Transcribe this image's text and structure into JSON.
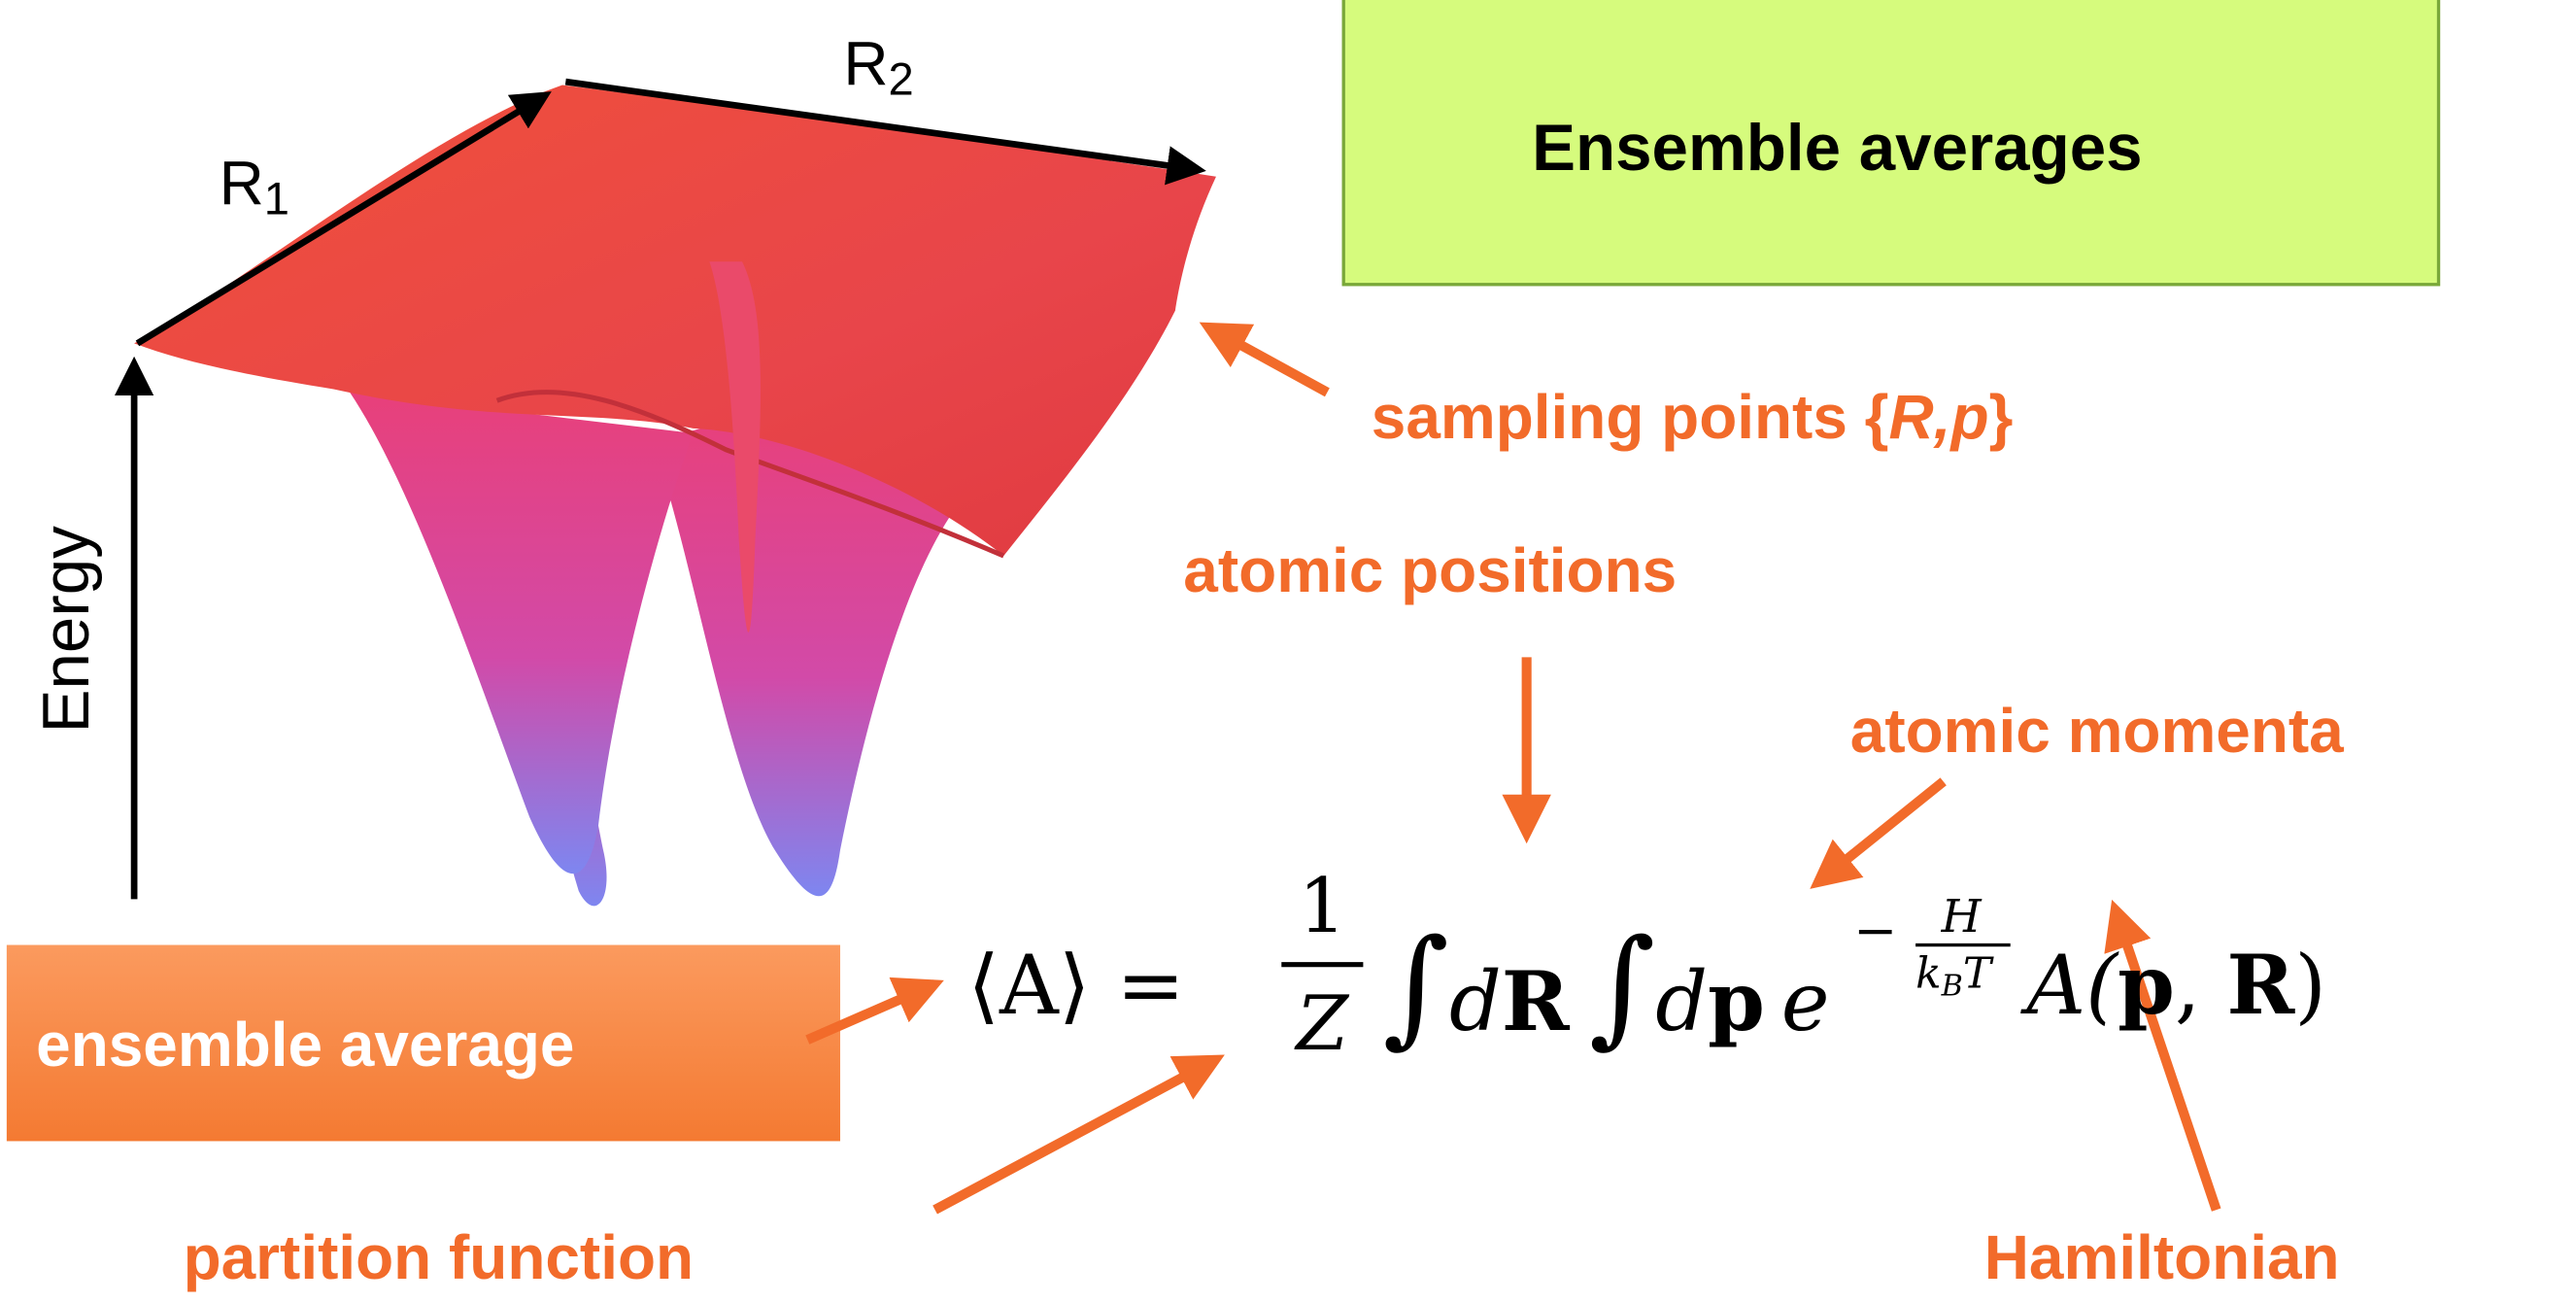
{
  "title": "Ensemble averages",
  "landscape": {
    "axis_1": {
      "letter": "R",
      "index": "1"
    },
    "axis_2": {
      "letter": "R",
      "index": "2"
    },
    "energy": "Energy"
  },
  "labels": {
    "sampling_points": {
      "before": "sampling points {",
      "italic": "R,p",
      "after": "}"
    },
    "atomic_positions": "atomic positions",
    "atomic_momenta": "atomic momenta",
    "ensemble_average": "ensemble average",
    "partition_function": "partition function",
    "hamiltonian": "Hamiltonian"
  },
  "formula": {
    "lhs": "⟨A⟩ =",
    "numerator": "1",
    "denominator": "Z",
    "integral_1": "∫",
    "d_1": "d",
    "R": "R",
    "integral_2": "∫",
    "d_2": "d",
    "p": "p",
    "e": "e",
    "minus": "−",
    "H": "H",
    "k": "k",
    "B": "B",
    "T": "T",
    "A_open": "A(",
    "arg_p": "p",
    "comma": ", ",
    "arg_R": "R",
    "close": ")"
  }
}
